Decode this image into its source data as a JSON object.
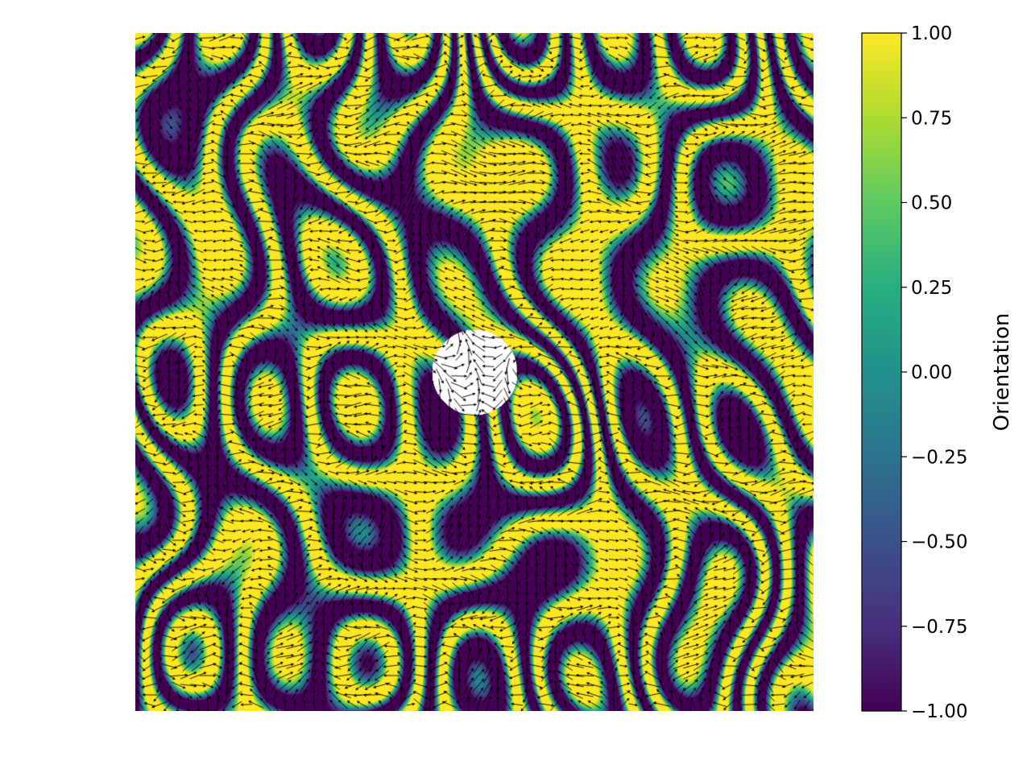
{
  "chart_data": {
    "type": "heatmap",
    "title": "",
    "xlabel": "",
    "ylabel": "",
    "axes_visible": false,
    "overlay": "quiver",
    "colormap": "viridis",
    "masked_region": "circle-center",
    "colorbar": {
      "label": "Orientation",
      "placement": "right",
      "vmin": -1.0,
      "vmax": 1.0,
      "ticks": [
        1.0,
        0.75,
        0.5,
        0.25,
        0.0,
        -0.25,
        -0.5,
        -0.75,
        -1.0
      ],
      "tick_labels": [
        "1.00",
        "0.75",
        "0.50",
        "0.25",
        "0.00",
        "−0.25",
        "−0.50",
        "−0.75",
        "−1.00"
      ]
    },
    "colors": {
      "arrows": "#000000",
      "viridis_stops": [
        "#440154",
        "#472f7d",
        "#3b528b",
        "#2c728e",
        "#21918c",
        "#28ae80",
        "#5ec962",
        "#addc30",
        "#fde725"
      ]
    }
  }
}
